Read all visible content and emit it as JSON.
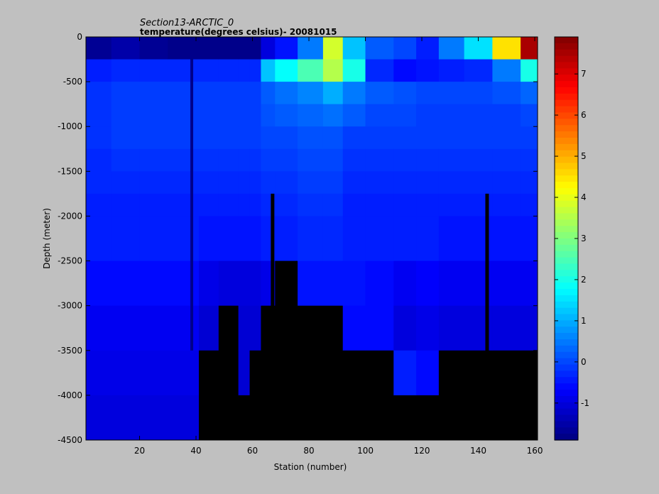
{
  "chart_data": {
    "type": "heatmap",
    "title": "Section13-ARCTIC_0",
    "subtitle": "temperature(degrees  celsius)- 20081015",
    "xlabel": "Station (number)",
    "ylabel": "Depth (meter)",
    "xlim": [
      1,
      161
    ],
    "ylim": [
      -4500,
      0
    ],
    "x_ticks": [
      20,
      40,
      60,
      80,
      100,
      120,
      140,
      160
    ],
    "y_ticks": [
      0,
      -500,
      -1000,
      -1500,
      -2000,
      -2500,
      -3000,
      -3500,
      -4000,
      -4500
    ],
    "colorbar": {
      "range": [
        -1.9,
        7.9
      ],
      "ticks": [
        7,
        6,
        5,
        4,
        3,
        2,
        1,
        0,
        -1
      ],
      "colormap": "jet"
    },
    "depth_levels": [
      0,
      -250,
      -500,
      -750,
      -1000,
      -1250,
      -1500,
      -1750,
      -2000,
      -2500,
      -3000,
      -3500,
      -4000,
      -4500
    ],
    "missing_color": "#000000",
    "column_groups": [
      {
        "station_range": [
          1,
          10
        ],
        "profile": [
          -1.7,
          -0.4,
          -0.2,
          -0.2,
          -0.2,
          -0.3,
          -0.3,
          -0.4,
          -0.4,
          -0.6,
          -0.8,
          -0.9,
          -1.0
        ]
      },
      {
        "station_range": [
          10,
          20
        ],
        "profile": [
          -1.5,
          -0.3,
          -0.1,
          -0.1,
          -0.1,
          -0.2,
          -0.3,
          -0.4,
          -0.4,
          -0.6,
          -0.8,
          -0.9,
          -1.0
        ]
      },
      {
        "station_range": [
          20,
          30
        ],
        "profile": [
          -1.7,
          -0.3,
          -0.1,
          -0.1,
          -0.1,
          -0.2,
          -0.3,
          -0.4,
          -0.4,
          -0.6,
          -0.8,
          -0.9,
          -1.0
        ]
      },
      {
        "station_range": [
          30,
          38
        ],
        "profile": [
          -1.8,
          -0.3,
          -0.1,
          -0.1,
          -0.1,
          -0.2,
          -0.3,
          -0.4,
          -0.4,
          -0.6,
          -0.8,
          -0.9,
          -1.0
        ]
      },
      {
        "station_range": [
          38,
          39
        ],
        "profile": [
          -1.8,
          -1.8,
          -1.8,
          -1.8,
          -1.8,
          -1.8,
          -1.8,
          -1.8,
          -1.8,
          -1.8,
          -1.8,
          -0.9,
          -1.0
        ]
      },
      {
        "station_range": [
          39,
          41
        ],
        "profile": [
          -1.8,
          -0.3,
          -0.1,
          -0.1,
          -0.1,
          -0.2,
          -0.3,
          -0.4,
          -0.4,
          -0.6,
          -0.8,
          -0.9,
          -1.0
        ]
      },
      {
        "station_range": [
          41,
          48
        ],
        "profile": [
          -1.8,
          -0.3,
          -0.1,
          -0.1,
          -0.1,
          -0.2,
          -0.3,
          -0.4,
          -0.5,
          -0.9,
          -1.1,
          null,
          null
        ]
      },
      {
        "station_range": [
          48,
          55
        ],
        "profile": [
          -1.8,
          -0.3,
          -0.1,
          -0.1,
          -0.1,
          -0.2,
          -0.3,
          -0.4,
          -0.5,
          -1.0,
          null,
          null,
          null
        ]
      },
      {
        "station_range": [
          55,
          59
        ],
        "profile": [
          -1.8,
          -0.3,
          -0.1,
          -0.1,
          -0.1,
          -0.2,
          -0.3,
          -0.4,
          -0.5,
          -1.0,
          -1.1,
          -1.1,
          null
        ]
      },
      {
        "station_range": [
          59,
          63
        ],
        "profile": [
          -1.8,
          -0.3,
          -0.1,
          -0.1,
          -0.1,
          -0.2,
          -0.3,
          -0.4,
          -0.5,
          -1.0,
          -1.1,
          null,
          null
        ]
      },
      {
        "station_range": [
          63,
          68
        ],
        "profile": [
          -1.0,
          1.2,
          0.2,
          0.1,
          0.0,
          -0.1,
          -0.2,
          -0.3,
          -0.4,
          -0.9,
          null,
          null,
          null
        ]
      },
      {
        "station_range": [
          68,
          76
        ],
        "profile": [
          -0.5,
          1.8,
          0.4,
          0.2,
          0.0,
          -0.1,
          -0.2,
          -0.3,
          -0.4,
          null,
          null,
          null,
          null
        ]
      },
      {
        "station_range": [
          76,
          85
        ],
        "profile": [
          0.5,
          2.5,
          0.6,
          0.3,
          0.1,
          0.0,
          -0.1,
          -0.2,
          -0.3,
          -0.5,
          null,
          null,
          null
        ]
      },
      {
        "station_range": [
          85,
          92
        ],
        "profile": [
          3.8,
          3.5,
          1.0,
          0.4,
          0.1,
          0.0,
          -0.1,
          -0.2,
          -0.3,
          -0.5,
          null,
          null,
          null
        ]
      },
      {
        "station_range": [
          92,
          100
        ],
        "profile": [
          1.2,
          2.0,
          0.5,
          0.2,
          -0.1,
          -0.2,
          -0.3,
          -0.4,
          -0.4,
          -0.5,
          -0.6,
          null,
          null
        ]
      },
      {
        "station_range": [
          100,
          110
        ],
        "profile": [
          0.2,
          -0.3,
          0.2,
          0.0,
          -0.1,
          -0.2,
          -0.3,
          -0.4,
          -0.4,
          -0.6,
          -0.6,
          null,
          null
        ]
      },
      {
        "station_range": [
          110,
          118
        ],
        "profile": [
          0.0,
          -0.6,
          0.1,
          0.0,
          -0.1,
          -0.2,
          -0.3,
          -0.4,
          -0.4,
          -0.8,
          -1.0,
          -0.4,
          null
        ]
      },
      {
        "station_range": [
          118,
          126
        ],
        "profile": [
          -0.4,
          -0.5,
          0.0,
          -0.1,
          -0.1,
          -0.2,
          -0.3,
          -0.4,
          -0.4,
          -0.7,
          -0.9,
          -0.6,
          null
        ]
      },
      {
        "station_range": [
          126,
          135
        ],
        "profile": [
          0.5,
          -0.4,
          0.0,
          -0.1,
          -0.1,
          -0.2,
          -0.3,
          -0.4,
          -0.5,
          -0.8,
          -1.0,
          null,
          null
        ]
      },
      {
        "station_range": [
          135,
          145
        ],
        "profile": [
          1.5,
          -0.3,
          0.0,
          -0.1,
          -0.1,
          -0.2,
          -0.3,
          -0.4,
          -0.5,
          -0.8,
          -1.0,
          null,
          null
        ]
      },
      {
        "station_range": [
          145,
          155
        ],
        "profile": [
          4.5,
          0.5,
          0.1,
          -0.1,
          -0.1,
          -0.2,
          -0.3,
          -0.4,
          -0.5,
          -0.8,
          -1.0,
          null,
          null
        ]
      },
      {
        "station_range": [
          155,
          161
        ],
        "profile": [
          7.5,
          2.0,
          0.3,
          0.0,
          -0.1,
          -0.2,
          -0.3,
          -0.4,
          -0.5,
          -0.8,
          -1.0,
          null,
          null
        ]
      }
    ],
    "seafloor_spikes": [
      {
        "station": 67,
        "top_depth": -1750
      },
      {
        "station": 143,
        "top_depth": -1750
      }
    ]
  }
}
